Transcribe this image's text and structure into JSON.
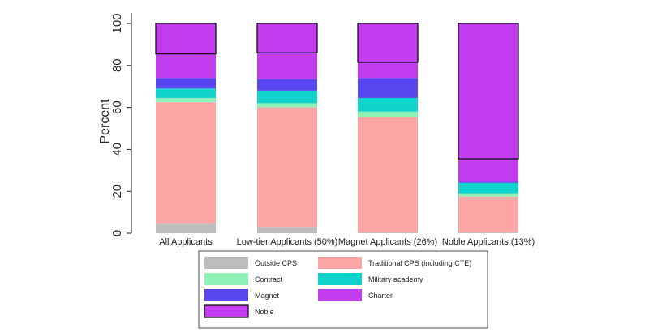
{
  "chart_data": {
    "type": "bar",
    "stacked": true,
    "ylabel": "Percent",
    "ylim": [
      0,
      100
    ],
    "yticks": [
      0,
      20,
      40,
      60,
      80,
      100
    ],
    "categories": [
      "All Applicants",
      "Low-tier Applicants (50%)",
      "Magnet Applicants (26%)",
      "Noble Applicants (13%)"
    ],
    "series": [
      {
        "name": "Outside CPS",
        "color": "#bdbdbd",
        "values": [
          4.5,
          3,
          0.5,
          0.5
        ]
      },
      {
        "name": "Traditional CPS (including CTE)",
        "color": "#fba5a5",
        "values": [
          58,
          57,
          55,
          17
        ]
      },
      {
        "name": "Contract",
        "color": "#8ff2b4",
        "values": [
          2,
          2,
          2.5,
          1.5
        ]
      },
      {
        "name": "Military academy",
        "color": "#10d4cc",
        "values": [
          4.5,
          6,
          6.5,
          5
        ]
      },
      {
        "name": "Magnet",
        "color": "#5a46f0",
        "values": [
          5,
          5.5,
          9.5,
          0.5
        ]
      },
      {
        "name": "Charter",
        "color": "#c23cf0",
        "values": [
          11.5,
          12.5,
          7.5,
          11
        ]
      },
      {
        "name": "Noble",
        "color": "#c23cf0",
        "outlined": true,
        "values": [
          14.5,
          14,
          18.5,
          64.5
        ]
      }
    ],
    "legend_position": "bottom",
    "legend_order": [
      "Outside CPS",
      "Traditional CPS (including CTE)",
      "Contract",
      "Military academy",
      "Magnet",
      "Charter",
      "Noble"
    ],
    "grid": false
  }
}
